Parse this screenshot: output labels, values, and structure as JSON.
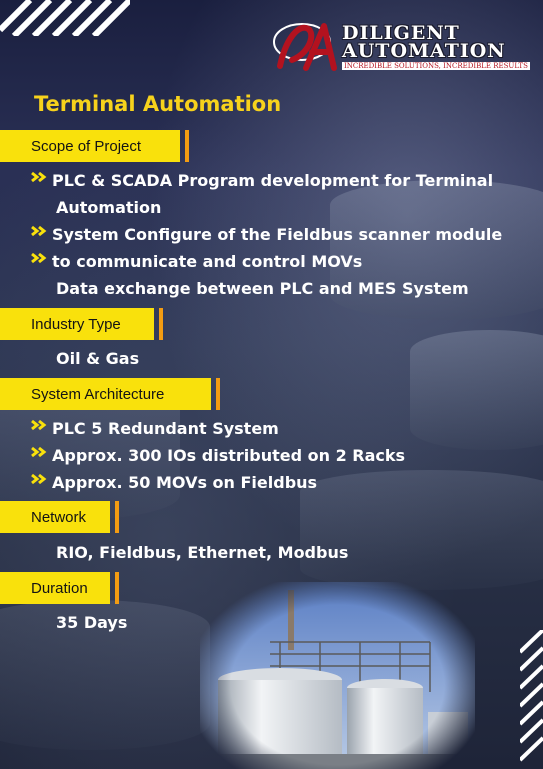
{
  "logo": {
    "mark": "DA",
    "line1": "DILIGENT",
    "line2": "AUTOMATION",
    "tagline": "INCREDIBLE SOLUTIONS, INCREDIBLE RESULTS"
  },
  "title": "Terminal Automation",
  "sections": {
    "scope": {
      "label": "Scope of Project",
      "bullets": [
        "PLC & SCADA Program development for Terminal",
        "Automation",
        "System Configure of the Fieldbus scanner module",
        "to communicate and control MOVs",
        "Data exchange between PLC and MES System"
      ]
    },
    "industry": {
      "label": "Industry Type",
      "value": "Oil & Gas"
    },
    "architecture": {
      "label": "System Architecture",
      "bullets": [
        "PLC 5 Redundant System",
        "Approx. 300 IOs distributed on 2 Racks",
        "Approx. 50 MOVs on Fieldbus"
      ]
    },
    "network": {
      "label": "Network",
      "value": "RIO, Fieldbus, Ethernet, Modbus"
    },
    "duration": {
      "label": "Duration",
      "value": "35 Days"
    }
  },
  "colors": {
    "accent_yellow": "#f9e10c",
    "title_yellow": "#f7d21c",
    "orange_bar": "#f39c12",
    "logo_red": "#b3121f"
  },
  "icons": {
    "bullet": "double-chevron-right-icon"
  }
}
